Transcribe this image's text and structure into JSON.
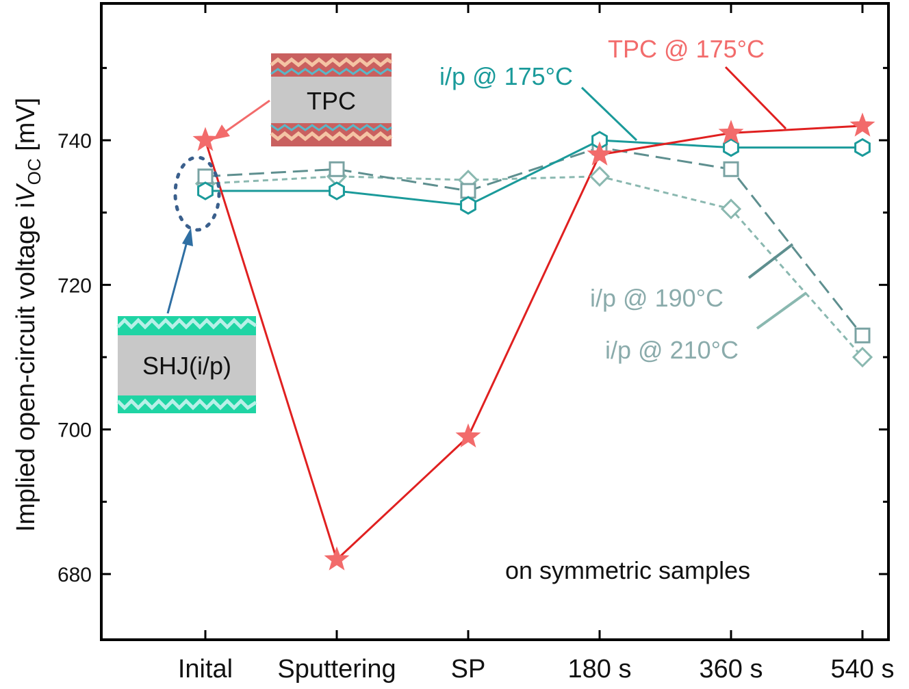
{
  "chart_data": {
    "type": "line",
    "categories": [
      "Inital",
      "Sputtering",
      "SP",
      "180 s",
      "360 s",
      "540 s"
    ],
    "ylabel_prefix": "Implied open-circuit voltage i",
    "ylabel_var": "V",
    "ylabel_sub": "OC",
    "ylabel_unit": " [mV]",
    "ylim": [
      670,
      758
    ],
    "yticks": [
      680,
      700,
      720,
      740
    ],
    "grid": false,
    "series": [
      {
        "name": "TPC @ 175°C",
        "marker": "star",
        "color": "#e02020",
        "marker_color": "#f26b6b",
        "dash": "solid",
        "values": [
          740,
          682,
          699,
          738,
          741,
          742
        ]
      },
      {
        "name": "i/p  @ 175°C",
        "marker": "hexagon",
        "color": "#1a9a9a",
        "marker_color": "#1a9a9a",
        "dash": "solid",
        "values": [
          733,
          733,
          731,
          740,
          739,
          739
        ]
      },
      {
        "name": "i/p @ 190°C",
        "marker": "square",
        "color": "#5e8f8f",
        "marker_color": "#7aa3a3",
        "dash": "long",
        "values": [
          735,
          736,
          733,
          739,
          736,
          713
        ]
      },
      {
        "name": "i/p @ 210°C",
        "marker": "diamond",
        "color": "#8ab8b0",
        "marker_color": "#8ab8b0",
        "dash": "short",
        "values": [
          734,
          735,
          734.5,
          735,
          730.5,
          710
        ]
      }
    ],
    "annotations": {
      "tpc_box": "TPC",
      "shj_box": "SHJ(i/p)",
      "note": "on symmetric samples"
    }
  }
}
